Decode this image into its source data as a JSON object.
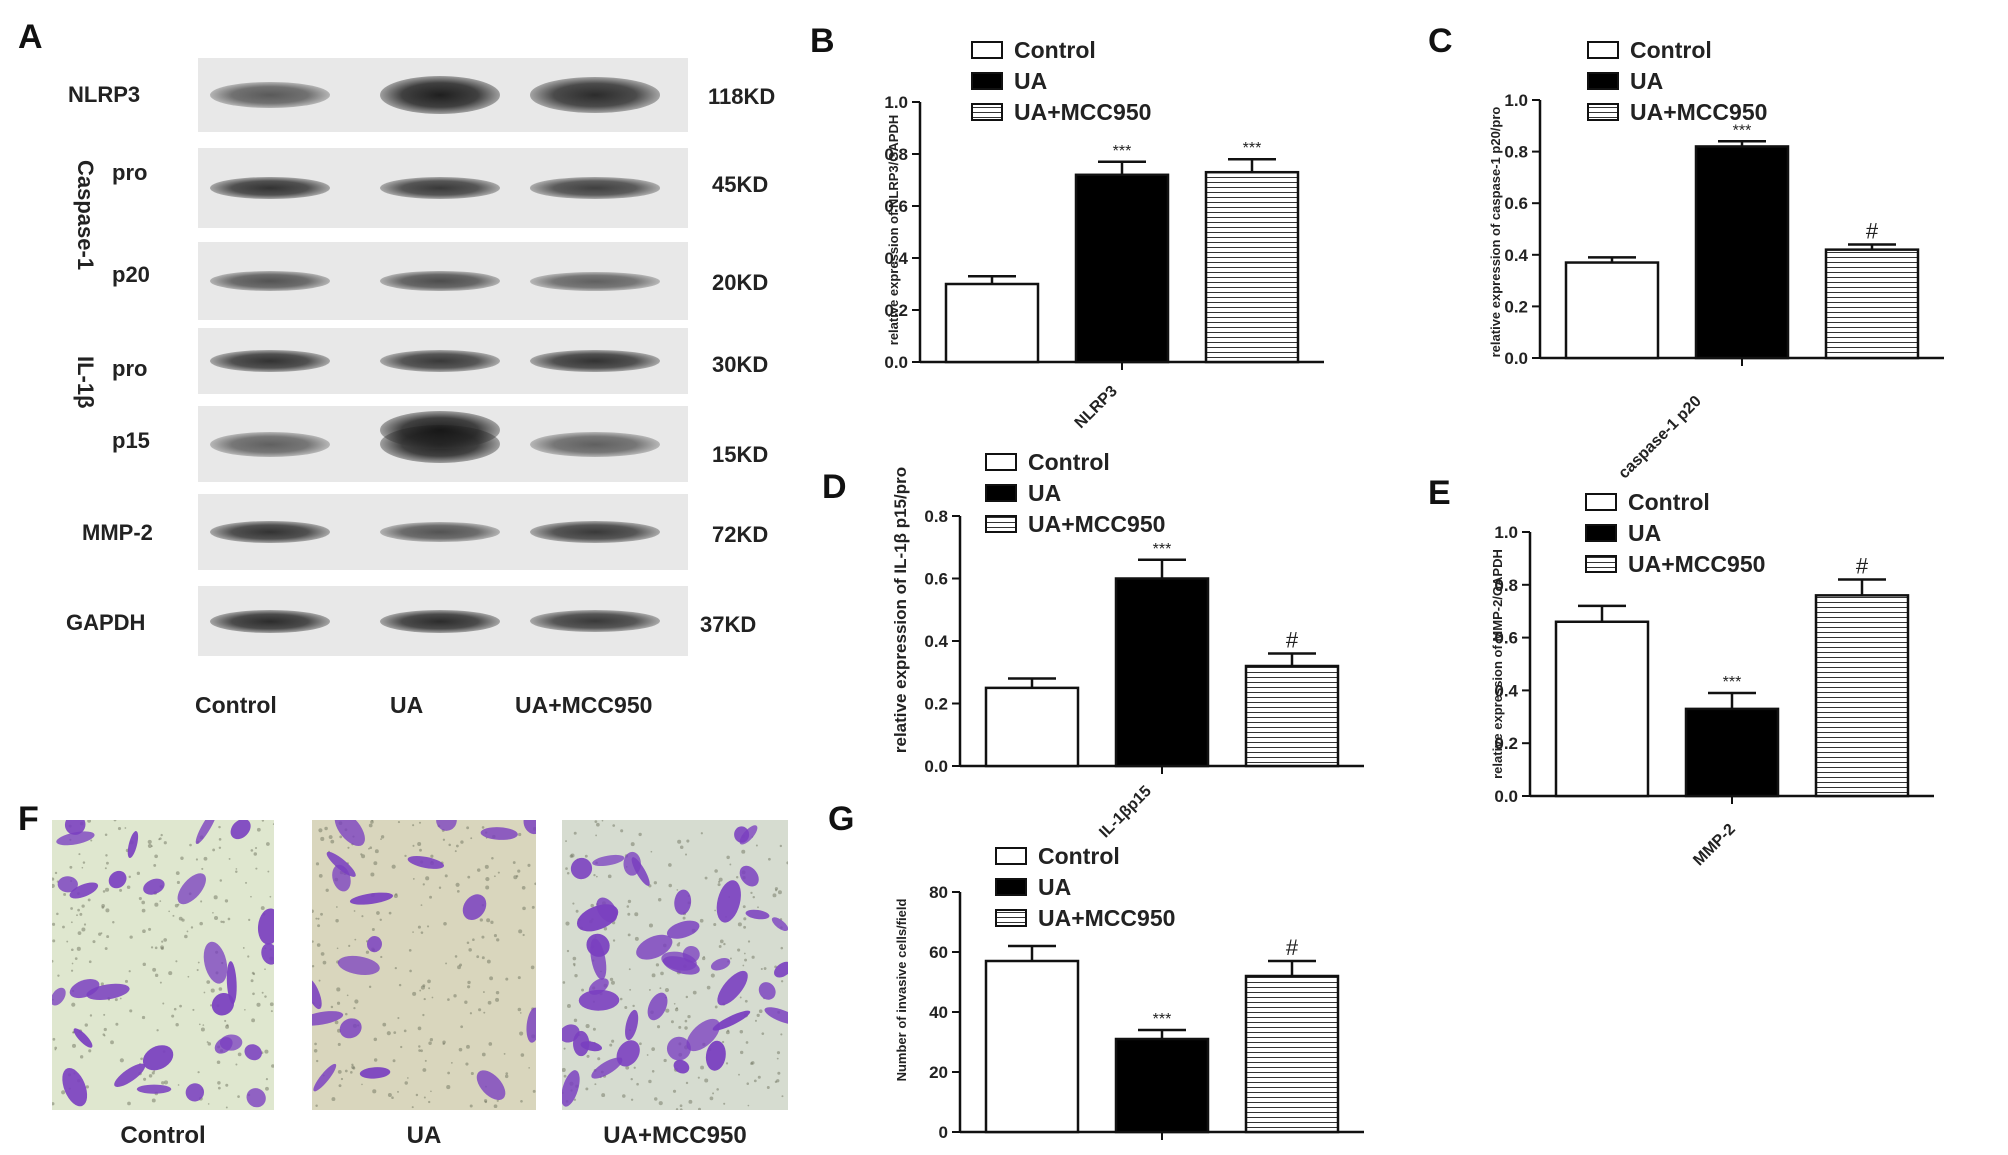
{
  "panel_A": {
    "letter": "A",
    "rows": [
      {
        "label": "NLRP3",
        "kd": "118KD"
      },
      {
        "label": "pro",
        "kd": "45KD"
      },
      {
        "label": "p20",
        "kd": "20KD"
      },
      {
        "label": "pro",
        "kd": "30KD"
      },
      {
        "label": "p15",
        "kd": "15KD"
      },
      {
        "label": "MMP-2",
        "kd": "72KD"
      },
      {
        "label": "GAPDH",
        "kd": "37KD"
      }
    ],
    "group_labels": [
      "Caspase-1",
      "IL-1β"
    ],
    "lanes": [
      "Control",
      "UA",
      "UA+MCC950"
    ],
    "band_intensity": [
      [
        0.55,
        1.0,
        0.9
      ],
      [
        0.85,
        0.8,
        0.75
      ],
      [
        0.6,
        0.65,
        0.5
      ],
      [
        0.85,
        0.8,
        0.85
      ],
      [
        0.5,
        1.0,
        0.5
      ],
      [
        0.85,
        0.6,
        0.8
      ],
      [
        0.9,
        0.9,
        0.8
      ]
    ]
  },
  "panel_F": {
    "letter": "F",
    "images": [
      {
        "label": "Control",
        "density": "sparse"
      },
      {
        "label": "UA",
        "density": "very sparse"
      },
      {
        "label": "UA+MCC950",
        "density": "dense"
      }
    ],
    "stain_color": "#7a3fc0"
  },
  "colors": {
    "control": "#ffffff",
    "ua": "#000000",
    "mcc": "#ffffff",
    "outline": "#111111"
  },
  "chart_data": [
    {
      "panel": "B",
      "type": "bar",
      "ylabel": "relative expression of NLRP3/GAPDH",
      "xlabel": "NLRP3",
      "ylim": [
        0,
        1.0
      ],
      "yticks": [
        "0.0",
        "0.2",
        "0.4",
        "0.6",
        "0.8",
        "1.0"
      ],
      "ytick_values": [
        0,
        0.2,
        0.4,
        0.6,
        0.8,
        1.0
      ],
      "legend": [
        "Control",
        "UA",
        "UA+MCC950"
      ],
      "values": [
        0.3,
        0.72,
        0.73
      ],
      "errors": [
        0.03,
        0.05,
        0.05
      ],
      "annotations": [
        "",
        "***",
        "***"
      ]
    },
    {
      "panel": "C",
      "type": "bar",
      "ylabel": "relative expression of caspase-1 p20/pro",
      "xlabel": "caspase-1 p20",
      "ylim": [
        0,
        1.0
      ],
      "yticks": [
        "0.0",
        "0.2",
        "0.4",
        "0.6",
        "0.8",
        "1.0"
      ],
      "ytick_values": [
        0,
        0.2,
        0.4,
        0.6,
        0.8,
        1.0
      ],
      "legend": [
        "Control",
        "UA",
        "UA+MCC950"
      ],
      "values": [
        0.37,
        0.82,
        0.42
      ],
      "errors": [
        0.02,
        0.02,
        0.02
      ],
      "annotations": [
        "",
        "***",
        "#"
      ]
    },
    {
      "panel": "D",
      "type": "bar",
      "ylabel": "relative expression of IL-1β p15/pro",
      "xlabel": "IL-1βp15",
      "ylim": [
        0,
        0.8
      ],
      "yticks": [
        "0.0",
        "0.2",
        "0.4",
        "0.6",
        "0.8"
      ],
      "ytick_values": [
        0,
        0.2,
        0.4,
        0.6,
        0.8
      ],
      "legend": [
        "Control",
        "UA",
        "UA+MCC950"
      ],
      "values": [
        0.25,
        0.6,
        0.32
      ],
      "errors": [
        0.03,
        0.06,
        0.04
      ],
      "annotations": [
        "",
        "***",
        "#"
      ]
    },
    {
      "panel": "E",
      "type": "bar",
      "ylabel": "relative expression of MMP-2/GAPDH",
      "xlabel": "MMP-2",
      "ylim": [
        0,
        1.0
      ],
      "yticks": [
        "0.0",
        "0.2",
        "0.4",
        "0.6",
        "0.8",
        "1.0"
      ],
      "ytick_values": [
        0,
        0.2,
        0.4,
        0.6,
        0.8,
        1.0
      ],
      "legend": [
        "Control",
        "UA",
        "UA+MCC950"
      ],
      "values": [
        0.66,
        0.33,
        0.76
      ],
      "errors": [
        0.06,
        0.06,
        0.06
      ],
      "annotations": [
        "",
        "***",
        "#"
      ]
    },
    {
      "panel": "G",
      "type": "bar",
      "ylabel": "Number of invasive cells/field",
      "xlabel": "",
      "ylim": [
        0,
        80
      ],
      "yticks": [
        "0",
        "20",
        "40",
        "60",
        "80"
      ],
      "ytick_values": [
        0,
        20,
        40,
        60,
        80
      ],
      "legend": [
        "Control",
        "UA",
        "UA+MCC950"
      ],
      "values": [
        57,
        31,
        52
      ],
      "errors": [
        5,
        3,
        5
      ],
      "annotations": [
        "",
        "***",
        "#"
      ]
    }
  ]
}
